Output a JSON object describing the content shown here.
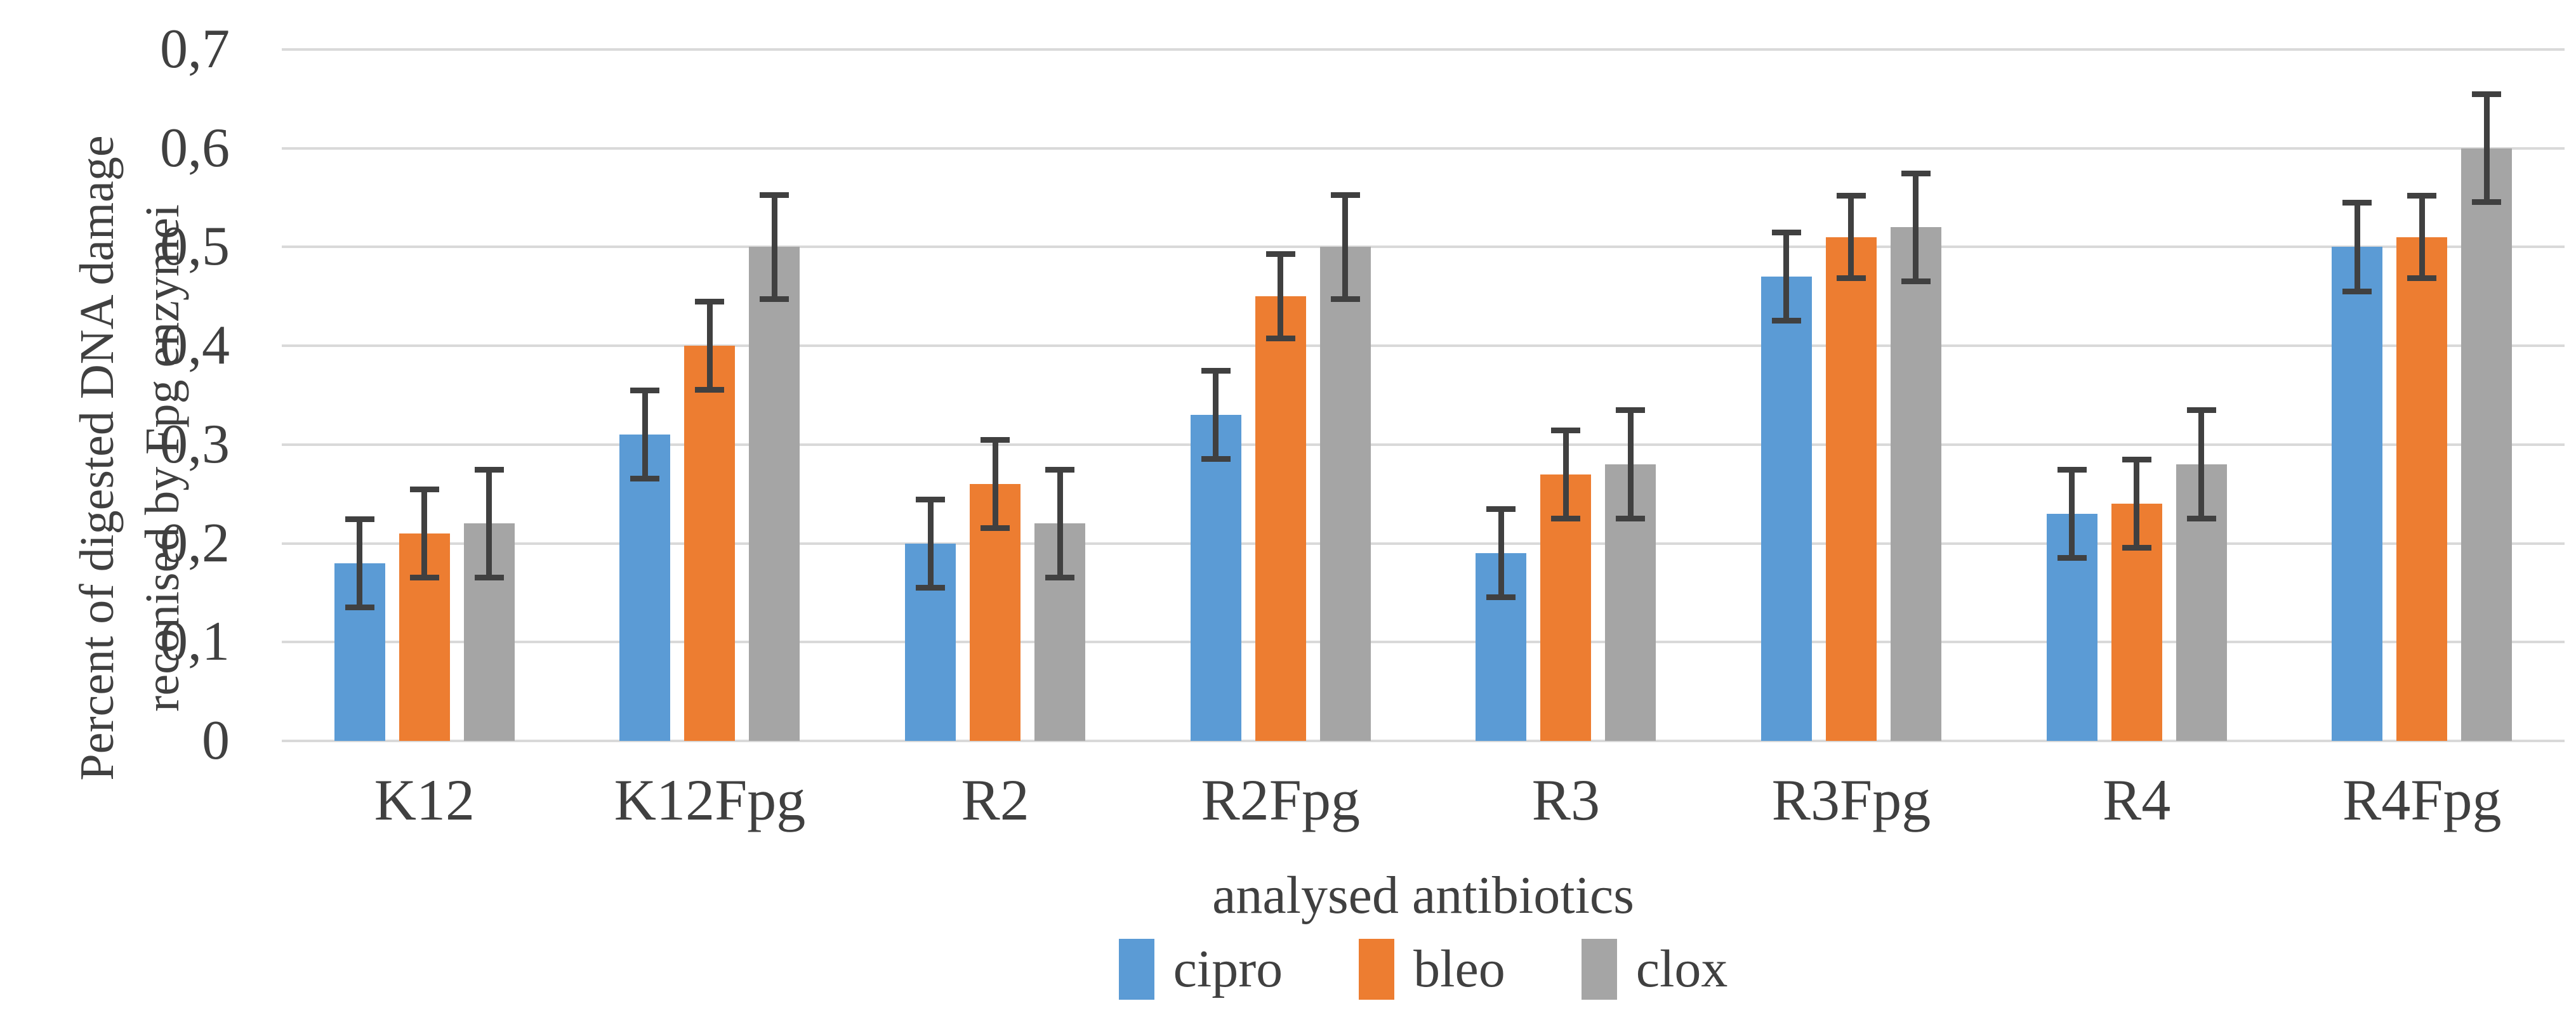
{
  "figure": {
    "background": "#FFFFFF"
  },
  "chart_data": {
    "type": "bar",
    "title": "",
    "categories": [
      "K12",
      "K12Fpg",
      "R2",
      "R2Fpg",
      "R3",
      "R3Fpg",
      "R4",
      "R4Fpg"
    ],
    "series": [
      {
        "name": "cipro",
        "color": "#5B9BD5",
        "values": [
          0.18,
          0.31,
          0.2,
          0.33,
          0.19,
          0.47,
          0.23,
          0.5
        ],
        "errors": [
          0.045,
          0.045,
          0.045,
          0.045,
          0.045,
          0.045,
          0.045,
          0.045
        ]
      },
      {
        "name": "bleo",
        "color": "#ED7D31",
        "values": [
          0.21,
          0.4,
          0.26,
          0.45,
          0.27,
          0.51,
          0.24,
          0.51
        ],
        "errors": [
          0.045,
          0.045,
          0.045,
          0.043,
          0.045,
          0.042,
          0.045,
          0.042
        ]
      },
      {
        "name": "clox",
        "color": "#A5A5A5",
        "values": [
          0.22,
          0.5,
          0.22,
          0.5,
          0.28,
          0.52,
          0.28,
          0.6
        ],
        "errors": [
          0.055,
          0.053,
          0.055,
          0.053,
          0.055,
          0.055,
          0.055,
          0.055
        ]
      }
    ],
    "xlabel": "analysed antibiotics",
    "ylabel_line1": "Percent of digested DNA damage",
    "ylabel_line2": "reconised by Fpg enzymei",
    "ylim": [
      0,
      0.7
    ],
    "ytick_labels": [
      "0",
      "0,1",
      "0,2",
      "0,3",
      "0,4",
      "0,5",
      "0,6",
      "0,7"
    ],
    "grid": true,
    "legend_position": "bottom",
    "colors": {
      "gridline": "#D9D9D9",
      "error_bar": "#404040",
      "text": "#404040"
    }
  }
}
